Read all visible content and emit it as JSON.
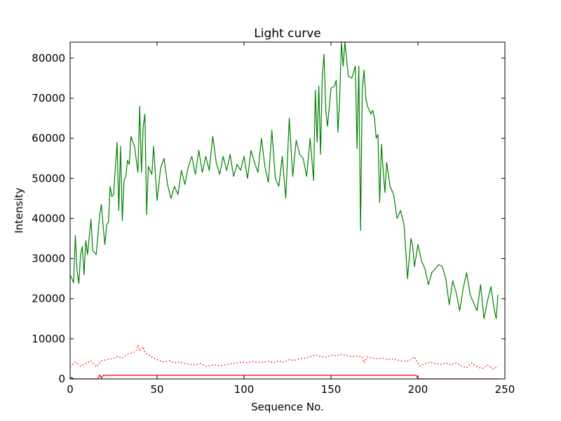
{
  "chart_data": {
    "type": "line",
    "title": "Light curve",
    "xlabel": "Sequence No.",
    "ylabel": "Intensity",
    "xlim": [
      0,
      250
    ],
    "ylim": [
      0,
      84000
    ],
    "xticks": [
      0,
      50,
      100,
      150,
      200,
      250
    ],
    "yticks": [
      0,
      10000,
      20000,
      30000,
      40000,
      50000,
      60000,
      70000,
      80000
    ],
    "grid": false,
    "legend": "none",
    "series": [
      {
        "style": "solid",
        "color": "#008000",
        "x": [
          0,
          2,
          3,
          4,
          5,
          6,
          7,
          8,
          9,
          10,
          12,
          13,
          15,
          17,
          18,
          19,
          20,
          21,
          22,
          23,
          24,
          25,
          27,
          28,
          29,
          30,
          31,
          32,
          33,
          34,
          35,
          37,
          39,
          40,
          41,
          42,
          43,
          44,
          45,
          47,
          48,
          50,
          52,
          54,
          56,
          58,
          60,
          62,
          64,
          66,
          68,
          70,
          72,
          74,
          76,
          78,
          80,
          82,
          84,
          86,
          88,
          90,
          92,
          94,
          96,
          98,
          100,
          102,
          104,
          106,
          108,
          110,
          112,
          114,
          116,
          118,
          120,
          122,
          124,
          126,
          128,
          130,
          132,
          134,
          136,
          138,
          140,
          141,
          142,
          143,
          144,
          145,
          146,
          147,
          148,
          150,
          152,
          153,
          154,
          155,
          156,
          157,
          158,
          160,
          162,
          164,
          165,
          166,
          167,
          168,
          169,
          170,
          171,
          172,
          173,
          174,
          175,
          176,
          177,
          178,
          179,
          180,
          181,
          182,
          184,
          186,
          188,
          190,
          192,
          194,
          196,
          197,
          198,
          200,
          202,
          204,
          206,
          208,
          210,
          212,
          214,
          216,
          218,
          220,
          222,
          224,
          226,
          228,
          230,
          232,
          234,
          236,
          238,
          240,
          242,
          244,
          245,
          246
        ],
        "y": [
          26000,
          24000,
          35800,
          27000,
          23800,
          31000,
          33000,
          26000,
          34500,
          31000,
          39800,
          32000,
          31000,
          41000,
          43500,
          38000,
          33500,
          38500,
          39000,
          48000,
          45500,
          46000,
          59000,
          42000,
          58000,
          39500,
          49500,
          50500,
          54500,
          53500,
          60500,
          58000,
          51500,
          68000,
          51500,
          63000,
          66000,
          41000,
          53000,
          51000,
          58000,
          44500,
          52500,
          55000,
          48500,
          45000,
          48000,
          46000,
          52000,
          48500,
          53000,
          55500,
          51000,
          57000,
          51500,
          55500,
          52000,
          60500,
          54000,
          51000,
          55500,
          52000,
          56000,
          50500,
          53500,
          52000,
          55500,
          50000,
          57000,
          54000,
          51500,
          60000,
          53000,
          49000,
          62000,
          50000,
          48000,
          55500,
          45000,
          65000,
          50500,
          59500,
          56000,
          55000,
          50500,
          60000,
          49500,
          72000,
          59000,
          73000,
          56000,
          75500,
          81000,
          67000,
          63000,
          72500,
          73000,
          74500,
          61500,
          70000,
          84000,
          78000,
          84000,
          75500,
          75000,
          78000,
          57500,
          78000,
          37000,
          72500,
          77000,
          70000,
          68000,
          67000,
          66000,
          67000,
          65000,
          60000,
          61000,
          44000,
          58500,
          52000,
          46500,
          54000,
          48000,
          46000,
          40000,
          42000,
          38500,
          25000,
          35000,
          33000,
          28000,
          33500,
          29500,
          27500,
          23500,
          26500,
          27500,
          28500,
          28000,
          25000,
          18500,
          24500,
          21500,
          17000,
          22500,
          26500,
          21000,
          19000,
          17000,
          23500,
          15000,
          19500,
          23000,
          17000,
          15000,
          21000
        ]
      },
      {
        "style": "dotted",
        "color": "#ff0000",
        "x": [
          0,
          3,
          6,
          9,
          12,
          15,
          18,
          21,
          24,
          27,
          30,
          33,
          36,
          38,
          39,
          40,
          41,
          42,
          43,
          45,
          48,
          51,
          54,
          57,
          60,
          63,
          66,
          69,
          72,
          75,
          78,
          81,
          84,
          87,
          90,
          93,
          96,
          99,
          102,
          105,
          108,
          111,
          114,
          117,
          120,
          123,
          126,
          129,
          132,
          135,
          138,
          141,
          144,
          147,
          150,
          153,
          156,
          159,
          162,
          165,
          168,
          169,
          171,
          174,
          177,
          180,
          183,
          186,
          189,
          192,
          195,
          198,
          201,
          204,
          207,
          210,
          213,
          216,
          219,
          222,
          225,
          228,
          231,
          234,
          237,
          240,
          243,
          246
        ],
        "y": [
          3000,
          4200,
          3200,
          3800,
          4500,
          3000,
          4500,
          4800,
          5000,
          5500,
          5200,
          6200,
          6500,
          7000,
          8500,
          7000,
          7500,
          8000,
          6500,
          6000,
          5200,
          4600,
          4200,
          4500,
          4000,
          4200,
          3800,
          3600,
          3500,
          3800,
          3200,
          3400,
          3500,
          3300,
          3600,
          3800,
          4000,
          4200,
          4000,
          4300,
          4100,
          4200,
          4400,
          4000,
          4500,
          4200,
          4800,
          4600,
          5000,
          5200,
          5500,
          6000,
          5600,
          5400,
          5900,
          5800,
          6100,
          5800,
          5600,
          5700,
          5500,
          4000,
          5500,
          5200,
          5000,
          5200,
          4800,
          5000,
          4600,
          4400,
          4500,
          5500,
          3200,
          3800,
          4200,
          3800,
          3600,
          4000,
          3500,
          4000,
          3200,
          2800,
          4000,
          3000,
          2600,
          3500,
          2500,
          3000
        ]
      },
      {
        "style": "solid",
        "color": "#ff0000",
        "x": [
          0,
          16,
          17,
          18,
          19,
          20,
          199,
          200,
          246
        ],
        "y": [
          0,
          0,
          1000,
          200,
          900,
          900,
          900,
          0,
          0
        ]
      },
      {
        "style": "solid",
        "color": "#0000ff",
        "x": [
          0,
          1,
          2
        ],
        "y": [
          300,
          300,
          0
        ]
      }
    ]
  }
}
